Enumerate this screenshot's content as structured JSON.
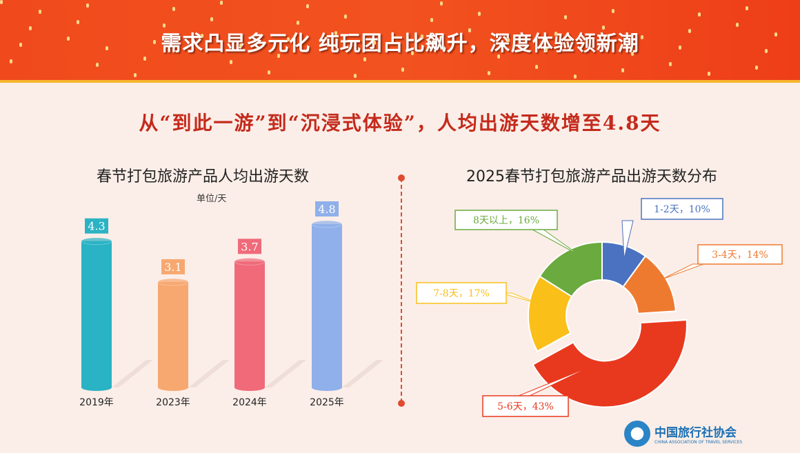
{
  "header": {
    "title": "需求凸显多元化  纯玩团占比飙升，深度体验领新潮",
    "subtitle": "从“到此一游”到“沉浸式体验”，人均出游天数增至4.8天"
  },
  "logo": {
    "cn": "中国旅行社协会",
    "en": "CHINA ASSOCIATION OF TRAVEL SERVICES"
  },
  "chart_data": [
    {
      "type": "bar",
      "title": "春节打包旅游产品人均出游天数",
      "unit": "单位/天",
      "categories": [
        "2019年",
        "2023年",
        "2024年",
        "2025年"
      ],
      "values": [
        4.3,
        3.1,
        3.7,
        4.8
      ],
      "labels": [
        "4.3",
        "3.1",
        "3.7",
        "4.8"
      ],
      "colors": [
        "#2ab3c4",
        "#f7a870",
        "#f06a7a",
        "#8fb0ea"
      ],
      "ylim": [
        0,
        5
      ]
    },
    {
      "type": "pie",
      "title": "2025春节打包旅游产品出游天数分布",
      "categories": [
        "1-2天",
        "3-4天",
        "5-6天",
        "7-8天",
        "8天以上"
      ],
      "values": [
        10,
        14,
        43,
        17,
        16
      ],
      "labels": [
        "1-2天，10%",
        "3-4天，14%",
        "5-6天，43%",
        "7-8天，17%",
        "8天以上，16%"
      ],
      "colors": [
        "#4a72c0",
        "#ee7a30",
        "#e8391e",
        "#fbbf1a",
        "#6aaa3e"
      ]
    }
  ]
}
